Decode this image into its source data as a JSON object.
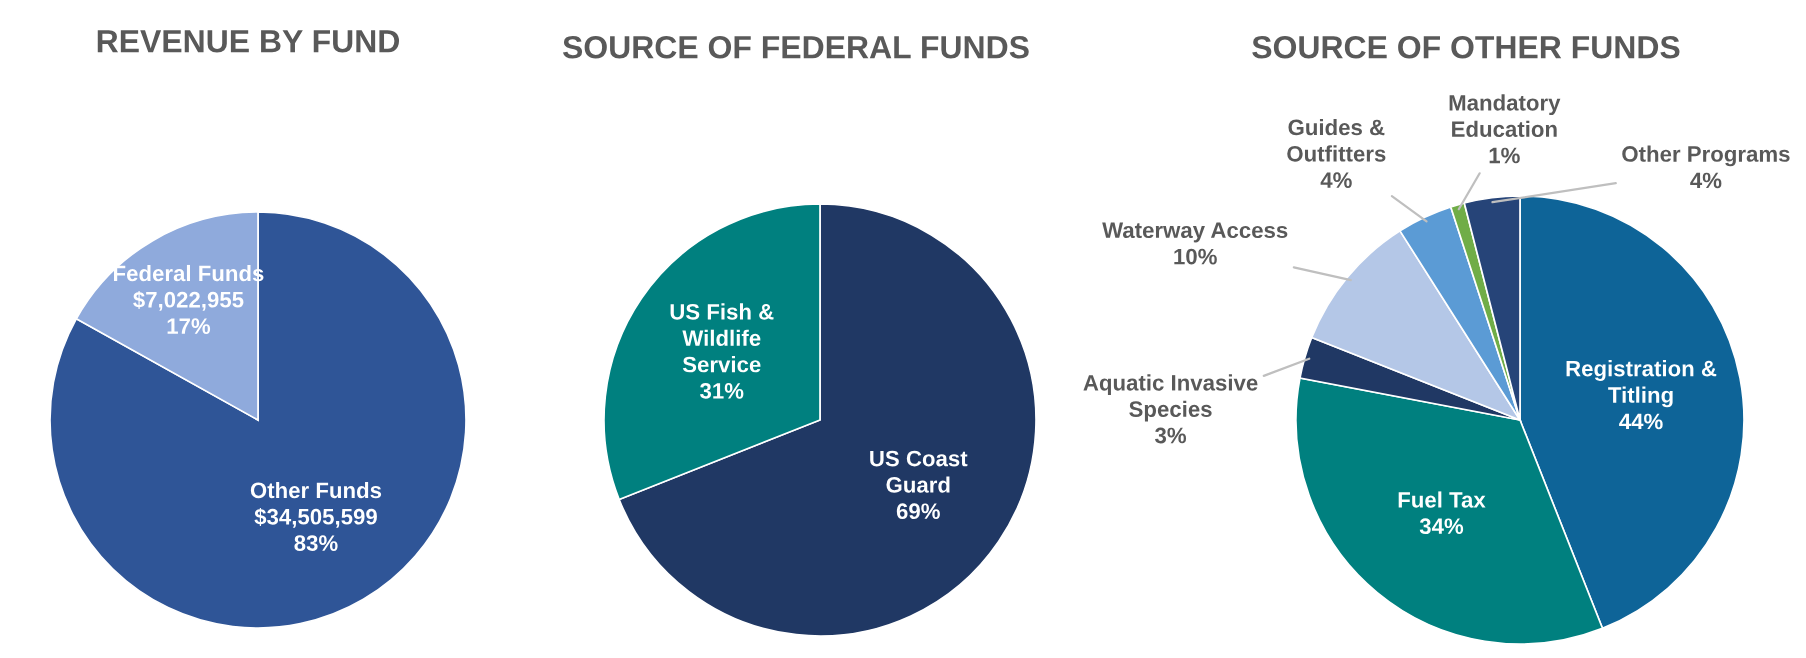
{
  "chart_data": [
    {
      "type": "pie",
      "title": "REVENUE BY FUND",
      "categories": [
        "Other Funds",
        "Federal Funds"
      ],
      "values": [
        34505599,
        7022955
      ],
      "colors": [
        "#2f5597",
        "#8faadc"
      ],
      "value_labels": [
        "$34,505,599\n83%",
        "$7,022,955\n17%"
      ]
    },
    {
      "type": "pie",
      "title": "SOURCE OF FEDERAL FUNDS",
      "categories": [
        "US Coast\nGuard",
        "US Fish &\nWildlife\nService"
      ],
      "values": [
        69,
        31
      ],
      "colors": [
        "#203864",
        "#00807f"
      ],
      "value_labels": [
        "69%",
        "31%"
      ],
      "data_labels": true
    },
    {
      "type": "pie",
      "title": "SOURCE OF OTHER FUNDS",
      "categories": [
        "Registration &\nTitling",
        "Fuel Tax",
        "Aquatic Invasive\nSpecies",
        "Waterway Access",
        "Guides &\nOutfitters",
        "Mandatory\nEducation",
        "Other Programs"
      ],
      "values": [
        44,
        34,
        3,
        10,
        4,
        1,
        4
      ],
      "colors": [
        "#0e6498",
        "#00807f",
        "#203864",
        "#b4c7e7",
        "#5b9bd5",
        "#70ad47",
        "#264478"
      ],
      "value_labels": [
        "44%",
        "34%",
        "3%",
        "10%",
        "4%",
        "1%",
        "4%"
      ],
      "data_labels": true
    }
  ]
}
